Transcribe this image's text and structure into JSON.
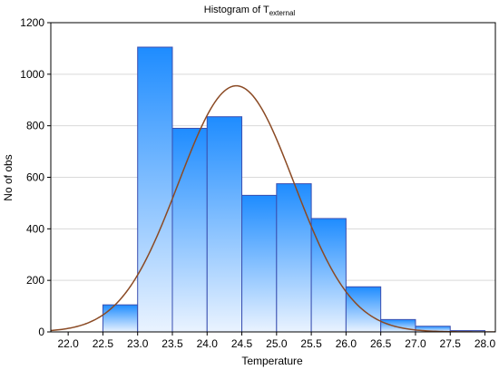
{
  "chart_data": {
    "type": "bar",
    "title_main": "Histogram of T",
    "title_subscript": "external",
    "xlabel": "Temperature",
    "ylabel": "No of obs",
    "xlim": [
      21.75,
      28.15
    ],
    "ylim": [
      0,
      1200
    ],
    "x_ticks": [
      "22.0",
      "22.5",
      "23.0",
      "23.5",
      "24.0",
      "24.5",
      "25.0",
      "25.5",
      "26.0",
      "26.5",
      "27.0",
      "27.5",
      "28.0"
    ],
    "x_tick_values": [
      22.0,
      22.5,
      23.0,
      23.5,
      24.0,
      24.5,
      25.0,
      25.5,
      26.0,
      26.5,
      27.0,
      27.5,
      28.0
    ],
    "y_ticks": [
      "0",
      "200",
      "400",
      "600",
      "800",
      "1000",
      "1200"
    ],
    "y_tick_values": [
      0,
      200,
      400,
      600,
      800,
      1000,
      1200
    ],
    "bins": [
      {
        "start": 22.5,
        "end": 23.0,
        "value": 105
      },
      {
        "start": 23.0,
        "end": 23.5,
        "value": 1105
      },
      {
        "start": 23.5,
        "end": 24.0,
        "value": 790
      },
      {
        "start": 24.0,
        "end": 24.5,
        "value": 835
      },
      {
        "start": 24.5,
        "end": 25.0,
        "value": 530
      },
      {
        "start": 25.0,
        "end": 25.5,
        "value": 575
      },
      {
        "start": 25.5,
        "end": 26.0,
        "value": 440
      },
      {
        "start": 26.0,
        "end": 26.5,
        "value": 175
      },
      {
        "start": 26.5,
        "end": 27.0,
        "value": 48
      },
      {
        "start": 27.0,
        "end": 27.5,
        "value": 22
      },
      {
        "start": 27.5,
        "end": 28.0,
        "value": 5
      }
    ],
    "normal_curve": {
      "mean": 24.42,
      "sd": 0.83,
      "peak": 955
    },
    "grid": "horizontal",
    "colors": {
      "bar_top": "#1e8cff",
      "bar_bottom": "#eaf3ff",
      "bar_stroke": "#3a4fb0",
      "curve": "#8b4a24",
      "grid": "#d9d9d9"
    }
  }
}
